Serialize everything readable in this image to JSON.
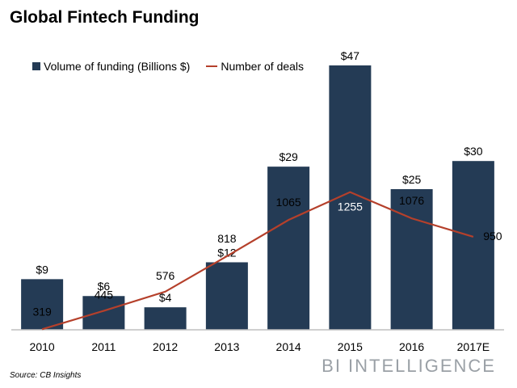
{
  "title": "Global Fintech Funding",
  "legend": {
    "bars": "Volume of funding (Billions $)",
    "line": "Number of deals"
  },
  "source": "Source: CB Insights",
  "brand": "BI INTELLIGENCE",
  "colors": {
    "bar": "#243b55",
    "line": "#b5402b",
    "axis": "#bfbfbf"
  },
  "chart_data": {
    "type": "bar",
    "title": "Global Fintech Funding",
    "categories": [
      "2010",
      "2011",
      "2012",
      "2013",
      "2014",
      "2015",
      "2016",
      "2017E"
    ],
    "series": [
      {
        "name": "Volume of funding (Billions $)",
        "type": "bar",
        "values": [
          9,
          6,
          4,
          12,
          29,
          47,
          25,
          30
        ],
        "labels": [
          "$9",
          "$6",
          "$4",
          "$12",
          "$29",
          "$47",
          "$25",
          "$30"
        ]
      },
      {
        "name": "Number of deals",
        "type": "line",
        "values": [
          319,
          445,
          576,
          818,
          1065,
          1255,
          1076,
          950
        ],
        "labels": [
          "319",
          "445",
          "576",
          "818",
          "1065",
          "1255",
          "1076",
          "950"
        ]
      }
    ],
    "legend_position": "top-left",
    "grid": false
  }
}
